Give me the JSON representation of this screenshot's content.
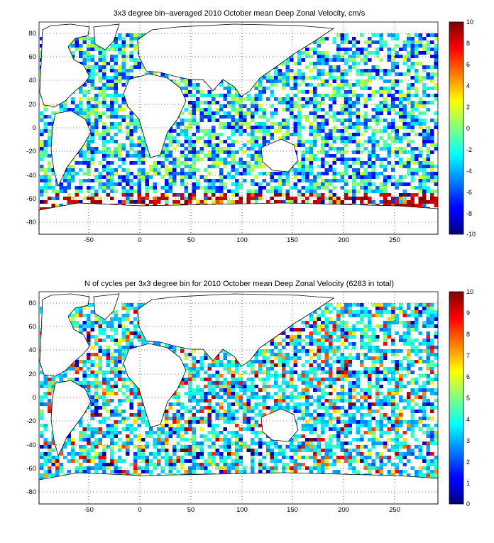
{
  "chart_data": [
    {
      "type": "heatmap",
      "title": "3x3 degree bin–averaged 2010 October mean Deep Zonal Velocity, cm/s",
      "xlabel": "",
      "ylabel": "",
      "xlim": [
        -100,
        292
      ],
      "ylim": [
        -90,
        90
      ],
      "xticks": [
        -50,
        0,
        50,
        100,
        150,
        200,
        250
      ],
      "yticks": [
        80,
        60,
        40,
        20,
        0,
        -20,
        -40,
        -60,
        -80
      ],
      "grid": true,
      "bin_size_deg": 3,
      "colorbar": {
        "label": "",
        "range": [
          -10,
          10
        ],
        "ticks": [
          10,
          8,
          6,
          4,
          2,
          0,
          -2,
          -4,
          -6,
          -8,
          -10
        ],
        "colormap": "jet"
      }
    },
    {
      "type": "heatmap",
      "title": "N of cycles per 3x3 degree bin for 2010 October mean Deep Zonal Velocity (6283 in total)",
      "xlabel": "",
      "ylabel": "",
      "xlim": [
        -100,
        292
      ],
      "ylim": [
        -90,
        90
      ],
      "xticks": [
        -50,
        0,
        50,
        100,
        150,
        200,
        250
      ],
      "yticks": [
        80,
        60,
        40,
        20,
        0,
        -20,
        -40,
        -60,
        -80
      ],
      "grid": true,
      "bin_size_deg": 3,
      "total_cycles": 6283,
      "colorbar": {
        "label": "",
        "range": [
          0,
          10
        ],
        "ticks": [
          10,
          9,
          8,
          7,
          6,
          5,
          4,
          3,
          2,
          1,
          0
        ],
        "colormap": "jet"
      }
    }
  ]
}
